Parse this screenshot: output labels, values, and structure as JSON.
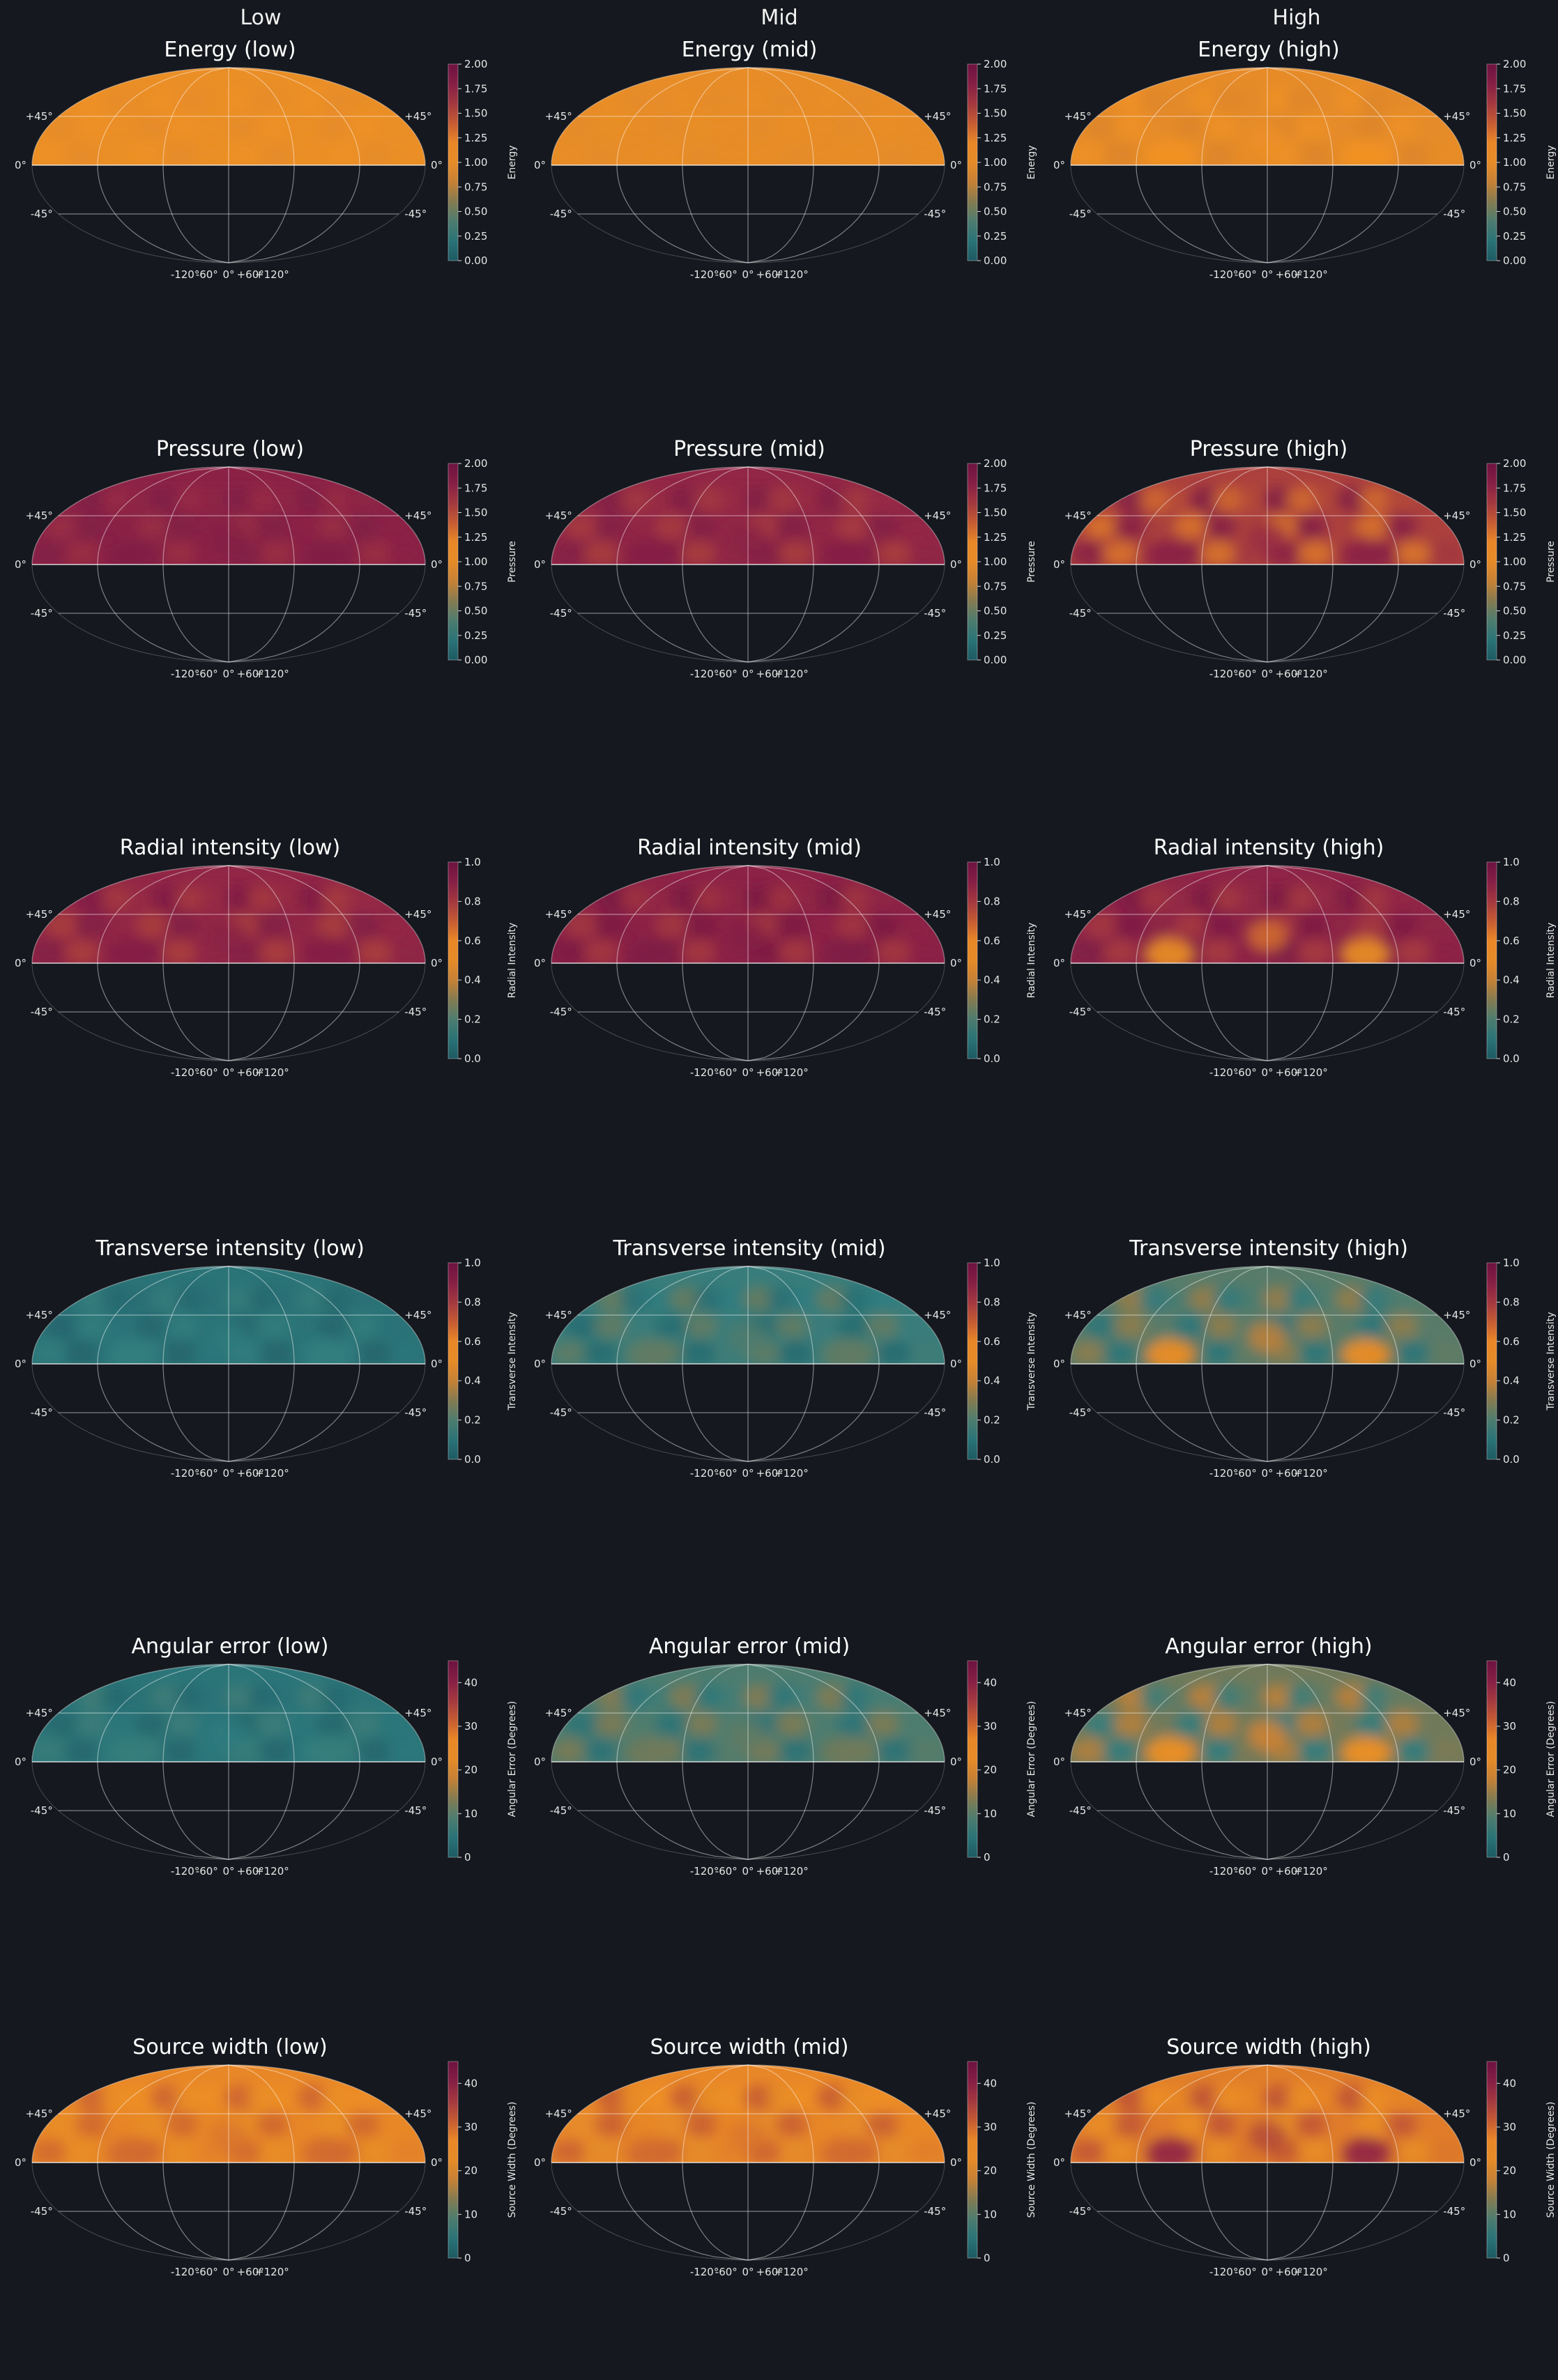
{
  "column_titles": [
    "Low",
    "Mid",
    "High"
  ],
  "colormap": {
    "stops": [
      "#1d5a62",
      "#2f7d80",
      "#7a7a55",
      "#d9832d",
      "#f29323",
      "#c05535",
      "#8f2447",
      "#6d1240"
    ]
  },
  "map_labels": {
    "lat_ticks": [
      "+45°",
      "0°",
      "-45°"
    ],
    "lon_ticks": [
      "-120°",
      "-60°",
      "0°",
      "+60°",
      "+120°"
    ]
  },
  "chart_data": [
    {
      "type": "heatmap",
      "title": "Energy (low)",
      "colorbar_label": "Energy",
      "colorbar_range": [
        0,
        2
      ],
      "colorbar_ticks": [
        "0.00",
        "0.25",
        "0.50",
        "0.75",
        "1.00",
        "1.25",
        "1.50",
        "1.75",
        "2.00"
      ],
      "mean_value": 1.05,
      "variation": 0.05,
      "hotspot": 0
    },
    {
      "type": "heatmap",
      "title": "Energy (mid)",
      "colorbar_label": "Energy",
      "colorbar_range": [
        0,
        2
      ],
      "colorbar_ticks": [
        "0.00",
        "0.25",
        "0.50",
        "0.75",
        "1.00",
        "1.25",
        "1.50",
        "1.75",
        "2.00"
      ],
      "mean_value": 1.02,
      "variation": 0.03,
      "hotspot": 0
    },
    {
      "type": "heatmap",
      "title": "Energy (high)",
      "colorbar_label": "Energy",
      "colorbar_range": [
        0,
        2
      ],
      "colorbar_ticks": [
        "0.00",
        "0.25",
        "0.50",
        "0.75",
        "1.00",
        "1.25",
        "1.50",
        "1.75",
        "2.00"
      ],
      "mean_value": 1.0,
      "variation": 0.12,
      "hotspot": 0.15
    },
    {
      "type": "heatmap",
      "title": "Pressure (low)",
      "colorbar_label": "Pressure",
      "colorbar_range": [
        0,
        2
      ],
      "colorbar_ticks": [
        "0.00",
        "0.25",
        "0.50",
        "0.75",
        "1.00",
        "1.25",
        "1.50",
        "1.75",
        "2.00"
      ],
      "mean_value": 1.75,
      "variation": 0.1,
      "hotspot": 0.08
    },
    {
      "type": "heatmap",
      "title": "Pressure (mid)",
      "colorbar_label": "Pressure",
      "colorbar_range": [
        0,
        2
      ],
      "colorbar_ticks": [
        "0.00",
        "0.25",
        "0.50",
        "0.75",
        "1.00",
        "1.25",
        "1.50",
        "1.75",
        "2.00"
      ],
      "mean_value": 1.7,
      "variation": 0.15,
      "hotspot": 0.1
    },
    {
      "type": "heatmap",
      "title": "Pressure (high)",
      "colorbar_label": "Pressure",
      "colorbar_range": [
        0,
        2
      ],
      "colorbar_ticks": [
        "0.00",
        "0.25",
        "0.50",
        "0.75",
        "1.00",
        "1.25",
        "1.50",
        "1.75",
        "2.00"
      ],
      "mean_value": 1.55,
      "variation": 0.3,
      "hotspot": 0.2
    },
    {
      "type": "heatmap",
      "title": "Radial intensity (low)",
      "colorbar_label": "Radial Intensity",
      "colorbar_range": [
        0,
        1
      ],
      "colorbar_ticks": [
        "0.0",
        "0.2",
        "0.4",
        "0.6",
        "0.8",
        "1.0"
      ],
      "mean_value": 0.85,
      "variation": 0.08,
      "hotspot": 0.05
    },
    {
      "type": "heatmap",
      "title": "Radial intensity (mid)",
      "colorbar_label": "Radial Intensity",
      "colorbar_range": [
        0,
        1
      ],
      "colorbar_ticks": [
        "0.0",
        "0.2",
        "0.4",
        "0.6",
        "0.8",
        "1.0"
      ],
      "mean_value": 0.87,
      "variation": 0.08,
      "hotspot": 0.05
    },
    {
      "type": "heatmap",
      "title": "Radial intensity (high)",
      "colorbar_label": "Radial Intensity",
      "colorbar_range": [
        0,
        1
      ],
      "colorbar_ticks": [
        "0.0",
        "0.2",
        "0.4",
        "0.6",
        "0.8",
        "1.0"
      ],
      "mean_value": 0.86,
      "variation": 0.08,
      "hotspot": -0.35
    },
    {
      "type": "heatmap",
      "title": "Transverse intensity (low)",
      "colorbar_label": "Transverse Intensity",
      "colorbar_range": [
        0,
        1
      ],
      "colorbar_ticks": [
        "0.0",
        "0.2",
        "0.4",
        "0.6",
        "0.8",
        "1.0"
      ],
      "mean_value": 0.1,
      "variation": 0.06,
      "hotspot": 0.05
    },
    {
      "type": "heatmap",
      "title": "Transverse intensity (mid)",
      "colorbar_label": "Transverse Intensity",
      "colorbar_range": [
        0,
        1
      ],
      "colorbar_ticks": [
        "0.0",
        "0.2",
        "0.4",
        "0.6",
        "0.8",
        "1.0"
      ],
      "mean_value": 0.16,
      "variation": 0.1,
      "hotspot": 0.08
    },
    {
      "type": "heatmap",
      "title": "Transverse intensity (high)",
      "colorbar_label": "Transverse Intensity",
      "colorbar_range": [
        0,
        1
      ],
      "colorbar_ticks": [
        "0.0",
        "0.2",
        "0.4",
        "0.6",
        "0.8",
        "1.0"
      ],
      "mean_value": 0.22,
      "variation": 0.12,
      "hotspot": 0.3
    },
    {
      "type": "heatmap",
      "title": "Angular error (low)",
      "colorbar_label": "Angular Error (Degrees)",
      "colorbar_range": [
        0,
        45
      ],
      "colorbar_ticks": [
        "0",
        "10",
        "20",
        "30",
        "40"
      ],
      "mean_value": 5,
      "variation": 3,
      "hotspot": 2
    },
    {
      "type": "heatmap",
      "title": "Angular error (mid)",
      "colorbar_label": "Angular Error (Degrees)",
      "colorbar_range": [
        0,
        45
      ],
      "colorbar_ticks": [
        "0",
        "10",
        "20",
        "30",
        "40"
      ],
      "mean_value": 9,
      "variation": 5,
      "hotspot": 3
    },
    {
      "type": "heatmap",
      "title": "Angular error (high)",
      "colorbar_label": "Angular Error (Degrees)",
      "colorbar_range": [
        0,
        45
      ],
      "colorbar_ticks": [
        "0",
        "10",
        "20",
        "30",
        "40"
      ],
      "mean_value": 12,
      "variation": 6,
      "hotspot": 12
    },
    {
      "type": "heatmap",
      "title": "Source width (low)",
      "colorbar_label": "Source Width (Degrees)",
      "colorbar_range": [
        0,
        45
      ],
      "colorbar_ticks": [
        "0",
        "10",
        "20",
        "30",
        "40"
      ],
      "mean_value": 27,
      "variation": 4,
      "hotspot": 3
    },
    {
      "type": "heatmap",
      "title": "Source width (mid)",
      "colorbar_label": "Source Width (Degrees)",
      "colorbar_range": [
        0,
        45
      ],
      "colorbar_ticks": [
        "0",
        "10",
        "20",
        "30",
        "40"
      ],
      "mean_value": 27,
      "variation": 5,
      "hotspot": 3
    },
    {
      "type": "heatmap",
      "title": "Source width (high)",
      "colorbar_label": "Source Width (Degrees)",
      "colorbar_range": [
        0,
        45
      ],
      "colorbar_ticks": [
        "0",
        "10",
        "20",
        "30",
        "40"
      ],
      "mean_value": 28,
      "variation": 5,
      "hotspot": 10
    }
  ]
}
